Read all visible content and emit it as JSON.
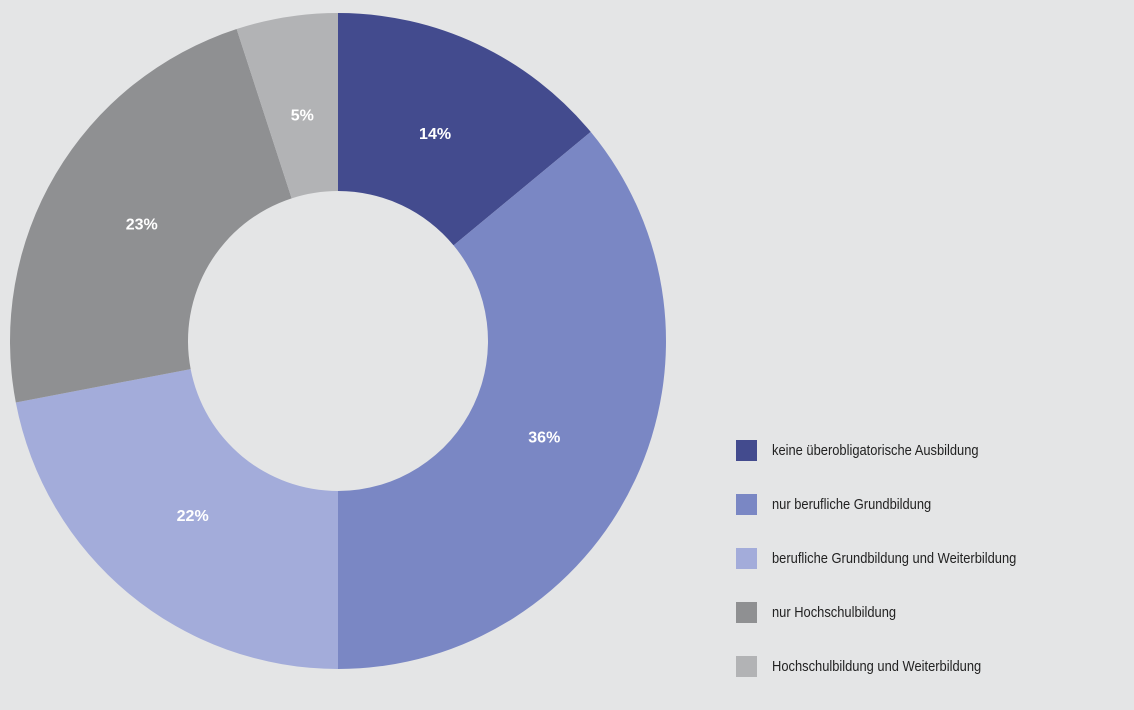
{
  "chart_data": {
    "type": "pie",
    "donut": true,
    "start_angle_deg": 0,
    "direction": "clockwise",
    "legend_position": "bottom-right",
    "slices": [
      {
        "label": "keine überobligatorische Ausbildung",
        "value": 14,
        "value_label": "14%",
        "color": "#434b8e"
      },
      {
        "label": "nur berufliche Grundbildung",
        "value": 36,
        "value_label": "36%",
        "color": "#7a87c4"
      },
      {
        "label": "berufliche Grundbildung und Weiterbildung",
        "value": 22,
        "value_label": "22%",
        "color": "#a3acda"
      },
      {
        "label": "nur Hochschulbildung",
        "value": 23,
        "value_label": "23%",
        "color": "#8f9092"
      },
      {
        "label": "Hochschulbildung und Weiterbildung",
        "value": 5,
        "value_label": "5%",
        "color": "#b2b3b5"
      }
    ]
  }
}
